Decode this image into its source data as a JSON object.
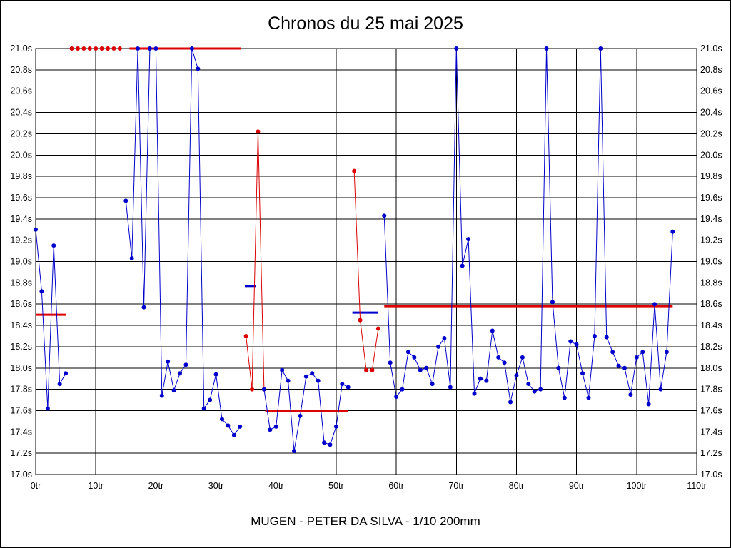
{
  "chart_data": {
    "type": "line",
    "title": "Chronos du 25 mai 2025",
    "footer": "MUGEN - PETER DA SILVA - 1/10 200mm",
    "xlim": [
      0,
      110
    ],
    "ylim": [
      17.0,
      21.0
    ],
    "x_unit": "tr",
    "y_unit": "s",
    "grid": true,
    "legend": "none",
    "x_tick_labels": [
      "0tr",
      "10tr",
      "20tr",
      "30tr",
      "40tr",
      "50tr",
      "60tr",
      "70tr",
      "80tr",
      "90tr",
      "100tr",
      "110tr"
    ],
    "y_tick_labels": [
      "21.0s",
      "20.8s",
      "20.6s",
      "20.4s",
      "20.2s",
      "20.0s",
      "19.8s",
      "19.6s",
      "19.4s",
      "19.2s",
      "19.0s",
      "18.8s",
      "18.6s",
      "18.4s",
      "18.2s",
      "18.0s",
      "17.8s",
      "17.6s",
      "17.4s",
      "17.2s",
      "17.0s"
    ],
    "colors": {
      "blue": "#0000cc",
      "red": "#dd0000",
      "grid": "#000000"
    },
    "series": [
      {
        "name": "lap-times-stint-1",
        "color": "blue",
        "points": [
          [
            0,
            19.3
          ],
          [
            1,
            18.72
          ],
          [
            2,
            17.62
          ],
          [
            3,
            19.15
          ],
          [
            4,
            17.85
          ],
          [
            5,
            17.95
          ]
        ]
      },
      {
        "name": "lap-times-stint-2",
        "color": "blue",
        "points": [
          [
            15,
            19.57
          ],
          [
            16,
            19.03
          ],
          [
            17,
            21.0
          ],
          [
            18,
            18.57
          ],
          [
            19,
            21.0
          ],
          [
            20,
            21.0
          ],
          [
            21,
            17.74
          ],
          [
            22,
            18.06
          ],
          [
            23,
            17.79
          ],
          [
            24,
            17.95
          ],
          [
            25,
            18.03
          ],
          [
            26,
            21.0
          ],
          [
            27,
            20.81
          ],
          [
            28,
            17.62
          ],
          [
            29,
            17.7
          ],
          [
            30,
            17.94
          ],
          [
            31,
            17.52
          ],
          [
            32,
            17.46
          ],
          [
            33,
            17.37
          ],
          [
            34,
            17.45
          ]
        ]
      },
      {
        "name": "pit-laps-1",
        "color": "red",
        "points": [
          [
            35,
            18.3
          ],
          [
            36,
            17.8
          ],
          [
            37,
            20.22
          ],
          [
            38,
            17.8
          ]
        ]
      },
      {
        "name": "lap-times-stint-3",
        "color": "blue",
        "points": [
          [
            38,
            17.8
          ],
          [
            39,
            17.42
          ],
          [
            40,
            17.45
          ],
          [
            41,
            17.98
          ],
          [
            42,
            17.88
          ],
          [
            43,
            17.22
          ],
          [
            44,
            17.55
          ],
          [
            45,
            17.92
          ],
          [
            46,
            17.95
          ],
          [
            47,
            17.88
          ],
          [
            48,
            17.3
          ],
          [
            49,
            17.28
          ],
          [
            50,
            17.45
          ],
          [
            51,
            17.85
          ],
          [
            52,
            17.82
          ]
        ]
      },
      {
        "name": "pit-laps-2",
        "color": "red",
        "points": [
          [
            53,
            19.85
          ],
          [
            54,
            18.45
          ],
          [
            55,
            17.98
          ],
          [
            56,
            17.98
          ],
          [
            57,
            18.37
          ]
        ]
      },
      {
        "name": "lap-times-stint-4",
        "color": "blue",
        "points": [
          [
            58,
            19.43
          ],
          [
            59,
            18.05
          ],
          [
            60,
            17.73
          ],
          [
            61,
            17.8
          ],
          [
            62,
            18.15
          ],
          [
            63,
            18.1
          ],
          [
            64,
            17.98
          ],
          [
            65,
            18.0
          ],
          [
            66,
            17.85
          ],
          [
            67,
            18.2
          ],
          [
            68,
            18.28
          ],
          [
            69,
            17.82
          ],
          [
            70,
            21.0
          ],
          [
            71,
            18.96
          ],
          [
            72,
            19.21
          ],
          [
            73,
            17.76
          ],
          [
            74,
            17.9
          ],
          [
            75,
            17.88
          ],
          [
            76,
            18.35
          ],
          [
            77,
            18.1
          ],
          [
            78,
            18.05
          ],
          [
            79,
            17.68
          ],
          [
            80,
            17.93
          ],
          [
            81,
            18.1
          ],
          [
            82,
            17.85
          ],
          [
            83,
            17.78
          ],
          [
            84,
            17.8
          ],
          [
            85,
            21.0
          ],
          [
            86,
            18.62
          ],
          [
            87,
            18.0
          ],
          [
            88,
            17.72
          ],
          [
            89,
            18.25
          ],
          [
            90,
            18.22
          ],
          [
            91,
            17.95
          ],
          [
            92,
            17.72
          ],
          [
            93,
            18.3
          ],
          [
            94,
            21.0
          ],
          [
            95,
            18.29
          ],
          [
            96,
            18.15
          ],
          [
            97,
            18.02
          ],
          [
            98,
            18.0
          ],
          [
            99,
            17.75
          ],
          [
            100,
            18.1
          ],
          [
            101,
            18.15
          ],
          [
            102,
            17.66
          ],
          [
            103,
            18.6
          ],
          [
            104,
            17.8
          ],
          [
            105,
            18.15
          ],
          [
            106,
            19.28
          ]
        ]
      }
    ],
    "over_limit_markers": {
      "y": 21.0,
      "laps": [
        6,
        7,
        8,
        9,
        10,
        11,
        12,
        13,
        14
      ],
      "color": "red"
    },
    "reference_lines": [
      {
        "name": "stint-average-1",
        "from": 0,
        "to": 5,
        "y": 18.5,
        "color": "red"
      },
      {
        "name": "stint-average-2",
        "from": 15.6,
        "to": 34.2,
        "y": 21.0,
        "color": "red"
      },
      {
        "name": "stint-average-3",
        "from": 38.2,
        "to": 51.9,
        "y": 17.6,
        "color": "red"
      },
      {
        "name": "stint-average-4",
        "from": 58.0,
        "to": 106.0,
        "y": 18.58,
        "color": "red"
      },
      {
        "name": "best-marker-1",
        "from": 34.8,
        "to": 36.6,
        "y": 18.77,
        "color": "blue"
      },
      {
        "name": "best-marker-2",
        "from": 52.7,
        "to": 56.9,
        "y": 18.52,
        "color": "blue"
      }
    ]
  }
}
